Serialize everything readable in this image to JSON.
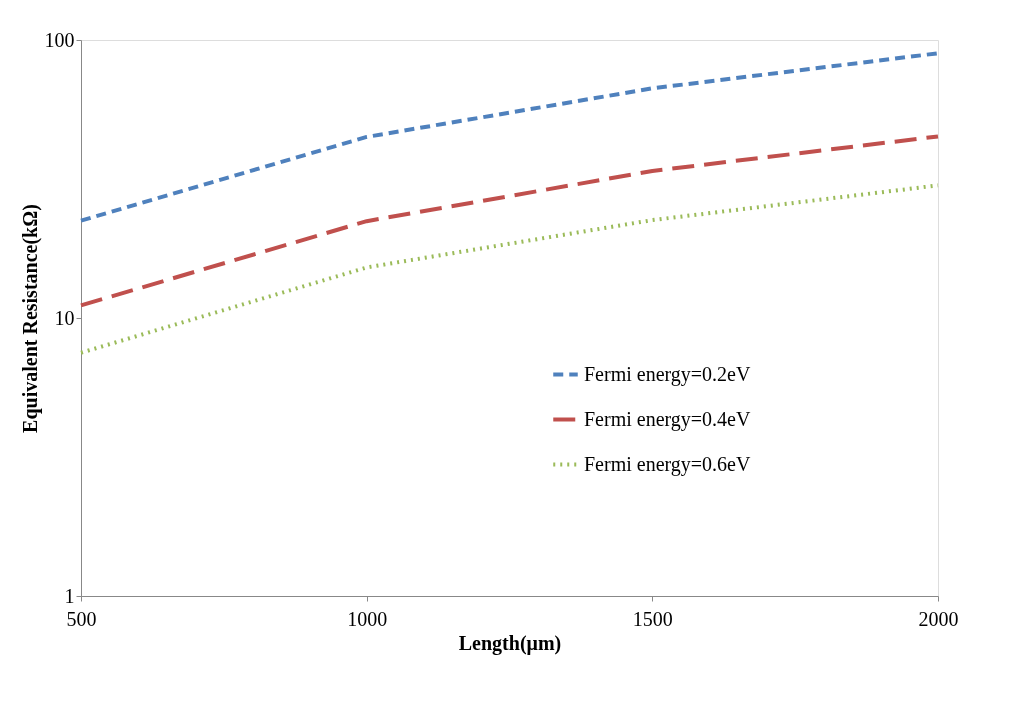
{
  "chart_data": {
    "type": "line",
    "xlabel": "Length(μm)",
    "ylabel": "Equivalent Resistance(kΩ)",
    "x": [
      500,
      1000,
      1500,
      2000
    ],
    "series": [
      {
        "name": "Fermi energy=0.2eV",
        "color": "#4f81bd",
        "line_style": "dashed",
        "values": [
          22.4,
          44.8,
          67,
          89.6
        ]
      },
      {
        "name": "Fermi energy=0.4eV",
        "color": "#c0504d",
        "line_style": "dashed",
        "values": [
          11.1,
          22.3,
          33.8,
          45
        ]
      },
      {
        "name": "Fermi energy=0.6eV",
        "color": "#9bbb59",
        "line_style": "dotted",
        "values": [
          7.5,
          15.2,
          22.5,
          30
        ]
      }
    ],
    "xlim": [
      500,
      2000
    ],
    "xticks": [
      500,
      1000,
      1500,
      2000
    ],
    "ylim": [
      1,
      100
    ],
    "yticks": [
      1,
      10,
      100
    ],
    "log": "y",
    "grid": false,
    "legend": "right",
    "marker": "none"
  }
}
